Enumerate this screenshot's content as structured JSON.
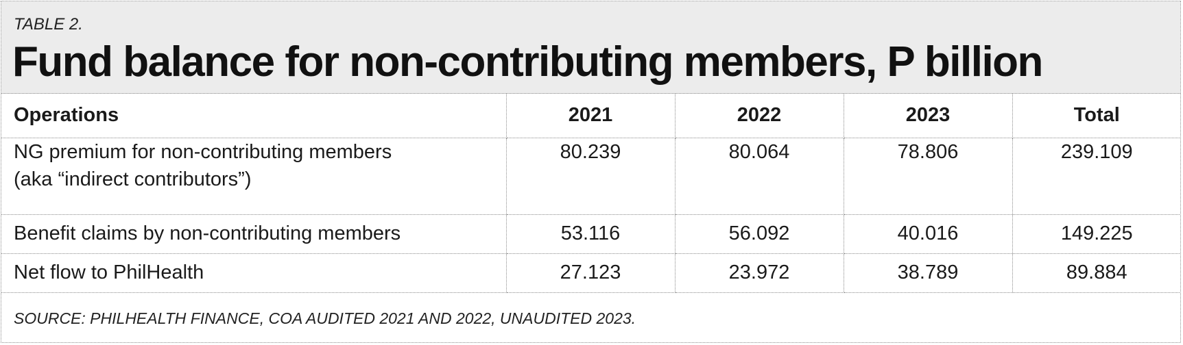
{
  "table_label": "TABLE 2.",
  "title": "Fund balance for non-contributing members, P billion",
  "columns": [
    "Operations",
    "2021",
    "2022",
    "2023",
    "Total"
  ],
  "rows": [
    {
      "operation_line1": "NG premium for non-contributing members",
      "operation_line2": "(aka “indirect contributors”)",
      "y2021": "80.239",
      "y2022": "80.064",
      "y2023": "78.806",
      "total": "239.109"
    },
    {
      "operation_line1": "Benefit claims by non-contributing members",
      "y2021": "53.116",
      "y2022": "56.092",
      "y2023": "40.016",
      "total": "149.225"
    },
    {
      "operation_line1": "Net flow to PhilHealth",
      "y2021": "27.123",
      "y2022": "23.972",
      "y2023": "38.789",
      "total": "89.884"
    }
  ],
  "source": "SOURCE: PHILHEALTH FINANCE, COA AUDITED 2021 AND 2022, UNAUDITED 2023."
}
